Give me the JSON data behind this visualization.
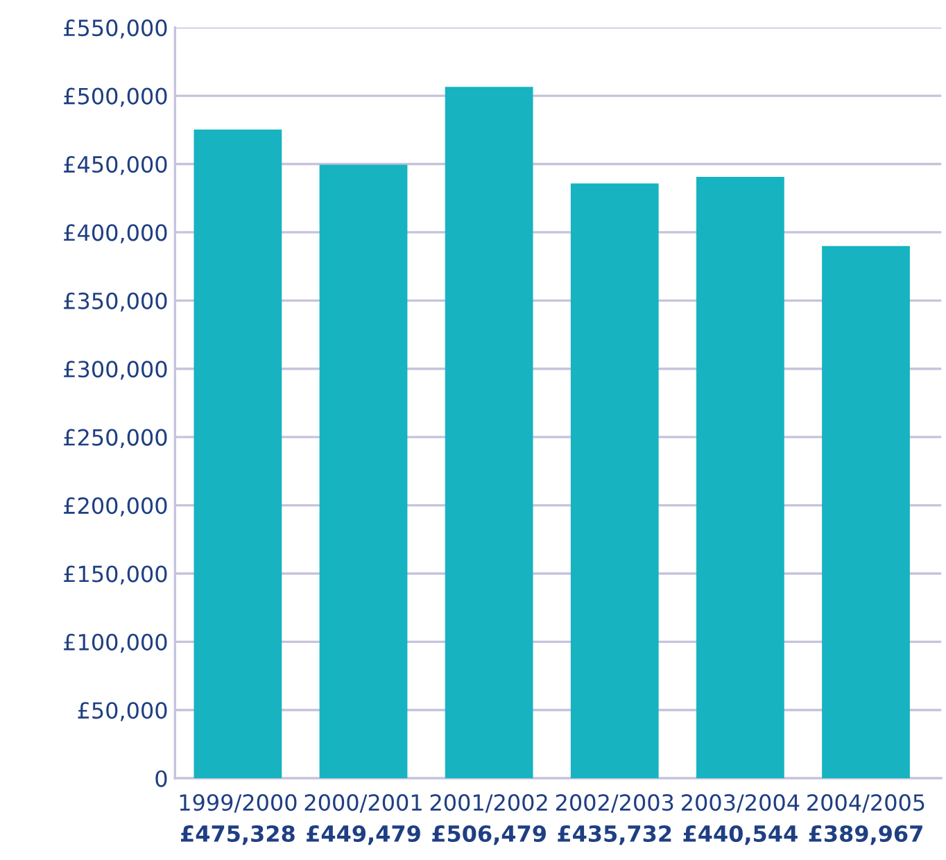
{
  "chart_data": {
    "type": "bar",
    "categories": [
      "1999/2000",
      "2000/2001",
      "2001/2002",
      "2002/2003",
      "2003/2004",
      "2004/2005"
    ],
    "values": [
      475328,
      449479,
      506479,
      435732,
      440544,
      389967
    ],
    "value_labels": [
      "£475,328",
      "£449,479",
      "£506,479",
      "£435,732",
      "£440,544",
      "£389,967"
    ],
    "color": "#17b3c1",
    "ylim": [
      0,
      550000
    ],
    "yticks": [
      {
        "value": 0,
        "label": "0"
      },
      {
        "value": 50000,
        "label": "£50,000"
      },
      {
        "value": 100000,
        "label": "£100,000"
      },
      {
        "value": 150000,
        "label": "£150,000"
      },
      {
        "value": 200000,
        "label": "£200,000"
      },
      {
        "value": 250000,
        "label": "£250,000"
      },
      {
        "value": 300000,
        "label": "£300,000"
      },
      {
        "value": 350000,
        "label": "£350,000"
      },
      {
        "value": 400000,
        "label": "£400,000"
      },
      {
        "value": 450000,
        "label": "£450,000"
      },
      {
        "value": 500000,
        "label": "£500,000"
      },
      {
        "value": 550000,
        "label": "£550,000"
      }
    ],
    "grid": "y"
  }
}
